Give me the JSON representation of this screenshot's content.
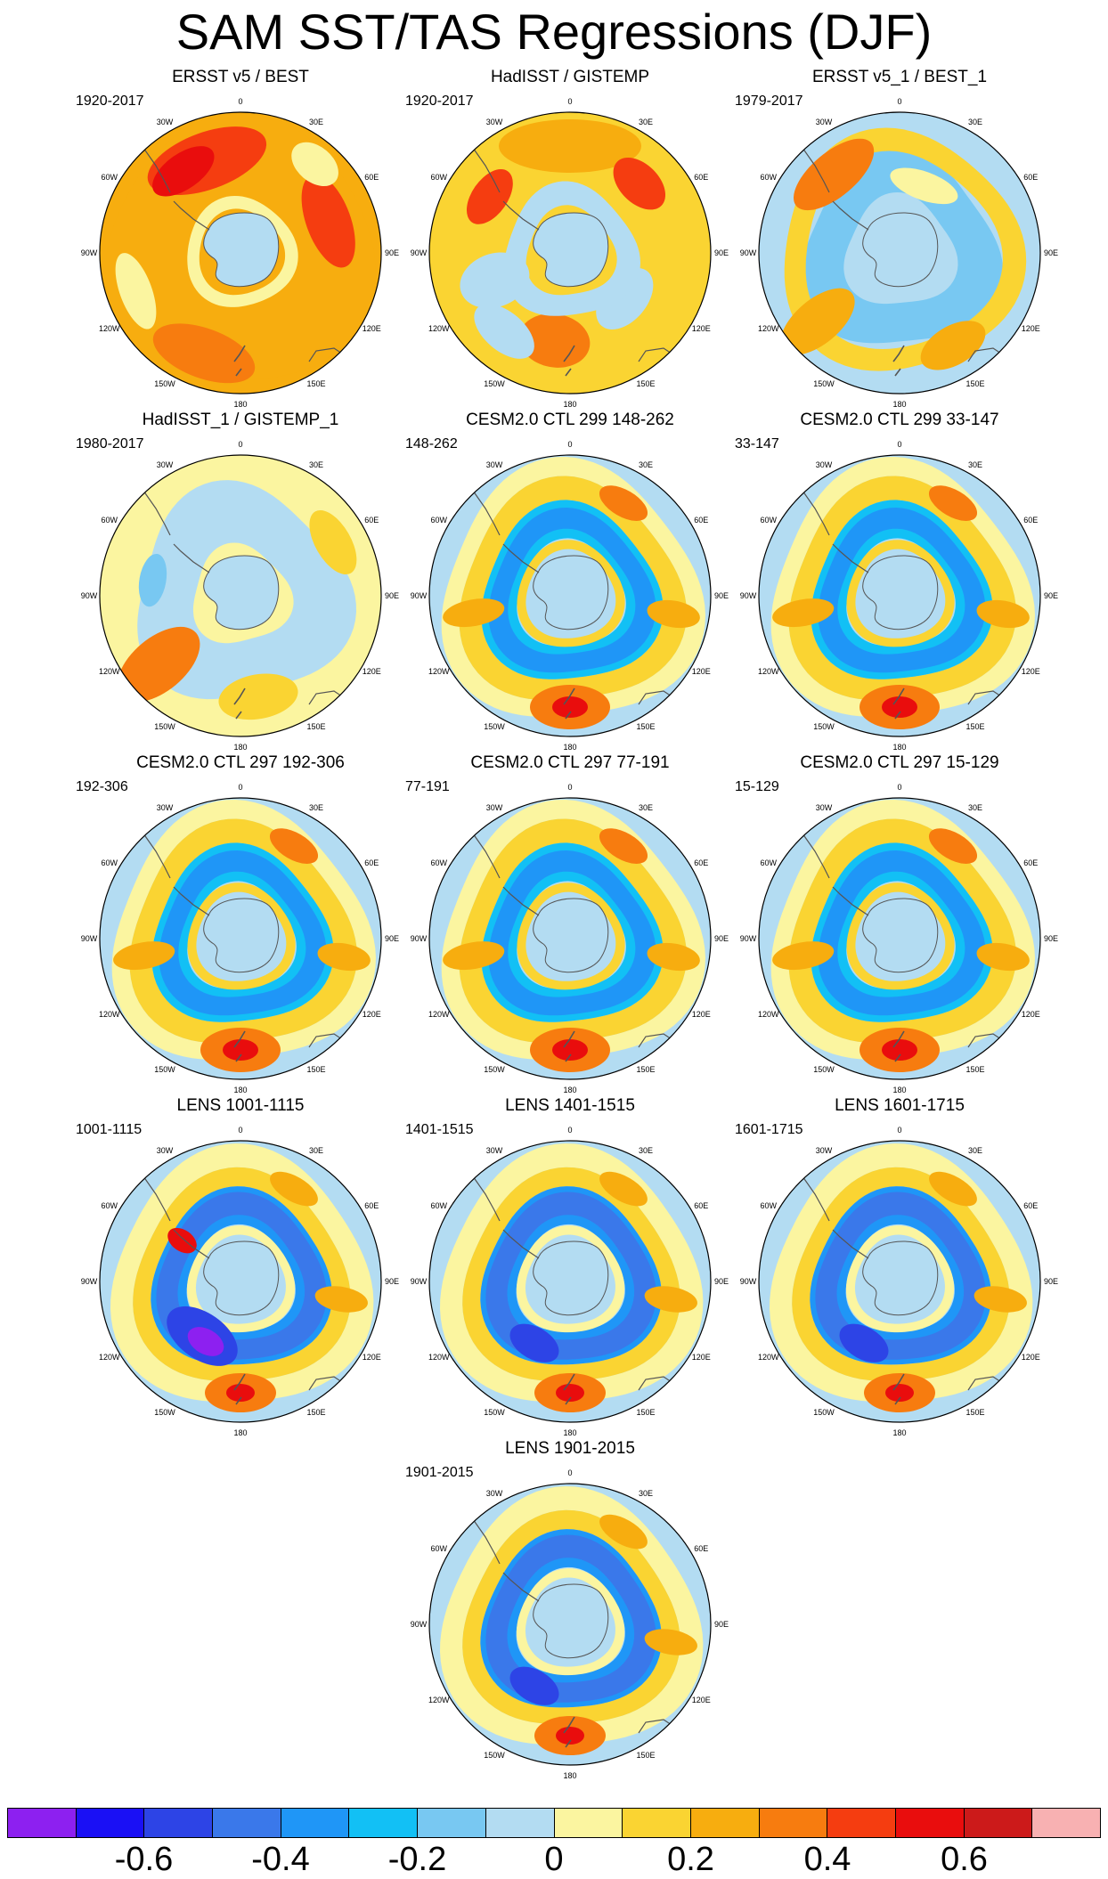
{
  "title": "SAM SST/TAS Regressions (DJF)",
  "longitude_labels": [
    "0",
    "30E",
    "60E",
    "90E",
    "120E",
    "150E",
    "180",
    "150W",
    "120W",
    "90W",
    "60W",
    "30W"
  ],
  "panels": [
    {
      "title": "ERSST v5 / BEST",
      "period": "1920-2017",
      "pattern": "obs_warm"
    },
    {
      "title": "HadISST / GISTEMP",
      "period": "1920-2017",
      "pattern": "obs_warm2"
    },
    {
      "title": "ERSST v5_1 / BEST_1",
      "period": "1979-2017",
      "pattern": "obs_recent"
    },
    {
      "title": "HadISST_1 / GISTEMP_1",
      "period": "1980-2017",
      "pattern": "obs_recent2"
    },
    {
      "title": "CESM2.0 CTL 299 148-262",
      "period": "148-262",
      "pattern": "model"
    },
    {
      "title": "CESM2.0 CTL 299 33-147",
      "period": "33-147",
      "pattern": "model"
    },
    {
      "title": "CESM2.0 CTL 297 192-306",
      "period": "192-306",
      "pattern": "model"
    },
    {
      "title": "CESM2.0 CTL 297 77-191",
      "period": "77-191",
      "pattern": "model"
    },
    {
      "title": "CESM2.0 CTL 297 15-129",
      "period": "15-129",
      "pattern": "model"
    },
    {
      "title": "LENS 1001-1115",
      "period": "1001-1115",
      "pattern": "lens_strong"
    },
    {
      "title": "LENS 1401-1515",
      "period": "1401-1515",
      "pattern": "lens"
    },
    {
      "title": "LENS 1601-1715",
      "period": "1601-1715",
      "pattern": "lens"
    },
    {
      "title": "LENS 1901-2015",
      "period": "1901-2015",
      "pattern": "lens"
    }
  ],
  "colorbar": {
    "colors": [
      "#8d20f0",
      "#1a10f5",
      "#2d44e6",
      "#3a78ea",
      "#1f96f7",
      "#12c0f5",
      "#78c8f2",
      "#b3dcf2",
      "#fbf5a0",
      "#fad432",
      "#f7ad0f",
      "#f77c0f",
      "#f53d10",
      "#e90d0d",
      "#cc1a1a",
      "#f8b1b2"
    ],
    "labels": [
      "-0.6",
      "-0.4",
      "-0.2",
      "0",
      "0.2",
      "0.4",
      "0.6"
    ]
  },
  "chart_data": {
    "type": "heatmap",
    "title": "SAM SST/TAS Regressions (DJF)",
    "projection": "south polar stereographic",
    "season": "DJF",
    "contour_levels": [
      -0.7,
      -0.6,
      -0.5,
      -0.4,
      -0.3,
      -0.2,
      -0.1,
      0,
      0.1,
      0.2,
      0.3,
      0.4,
      0.5,
      0.6,
      0.7
    ],
    "colorbar_labels": [
      -0.6,
      -0.4,
      -0.2,
      0,
      0.2,
      0.4,
      0.6
    ]
  }
}
